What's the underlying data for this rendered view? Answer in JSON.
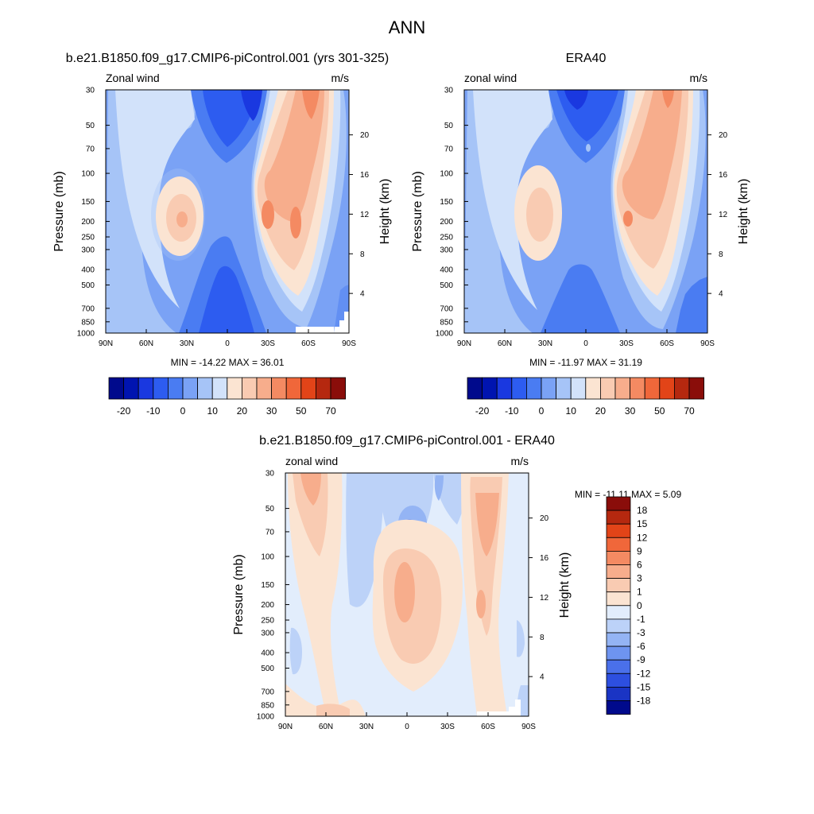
{
  "figure": {
    "suptitle": "ANN"
  },
  "chart_data": [
    {
      "type": "contour",
      "title": "b.e21.B1850.f09_g17.CMIP6-piControl.001 (yrs 301-325)",
      "left_label": "Zonal wind",
      "right_label": "m/s",
      "ylabel": "Pressure (mb)",
      "ylabel_right": "Height (km)",
      "x_ticks": [
        "90N",
        "60N",
        "30N",
        "0",
        "30S",
        "60S",
        "90S"
      ],
      "y_ticks": [
        "30",
        "50",
        "70",
        "100",
        "150",
        "200",
        "250",
        "300",
        "400",
        "500",
        "700",
        "850",
        "1000"
      ],
      "y_ticks_right": [
        "20",
        "16",
        "12",
        "8",
        "4"
      ],
      "min_max": "MIN = -14.22  MAX =  36.01",
      "levels": [
        -20,
        -10,
        0,
        10,
        20,
        30,
        50,
        70
      ],
      "colorbar_labels": [
        "-20",
        "-10",
        "0",
        "10",
        "20",
        "30",
        "50",
        "70"
      ],
      "colorbar_orientation": "horizontal",
      "min": -14.22,
      "max": 36.01
    },
    {
      "type": "contour",
      "title": "ERA40",
      "left_label": "zonal wind",
      "right_label": "m/s",
      "ylabel": "Pressure (mb)",
      "ylabel_right": "Height (km)",
      "x_ticks": [
        "90N",
        "60N",
        "30N",
        "0",
        "30S",
        "60S",
        "90S"
      ],
      "y_ticks": [
        "30",
        "50",
        "70",
        "100",
        "150",
        "200",
        "250",
        "300",
        "400",
        "500",
        "700",
        "850",
        "1000"
      ],
      "y_ticks_right": [
        "20",
        "16",
        "12",
        "8",
        "4"
      ],
      "min_max": "MIN = -11.97  MAX =  31.19",
      "levels": [
        -20,
        -10,
        0,
        10,
        20,
        30,
        50,
        70
      ],
      "colorbar_labels": [
        "-20",
        "-10",
        "0",
        "10",
        "20",
        "30",
        "50",
        "70"
      ],
      "colorbar_orientation": "horizontal",
      "min": -11.97,
      "max": 31.19
    },
    {
      "type": "contour",
      "title": "b.e21.B1850.f09_g17.CMIP6-piControl.001 - ERA40",
      "left_label": "zonal wind",
      "right_label": "m/s",
      "ylabel": "Pressure (mb)",
      "ylabel_right": "Height (km)",
      "x_ticks": [
        "90N",
        "60N",
        "30N",
        "0",
        "30S",
        "60S",
        "90S"
      ],
      "y_ticks": [
        "30",
        "50",
        "70",
        "100",
        "150",
        "200",
        "250",
        "300",
        "400",
        "500",
        "700",
        "850",
        "1000"
      ],
      "y_ticks_right": [
        "20",
        "16",
        "12",
        "8",
        "4"
      ],
      "min_max": "MIN = -11.11  MAX =   5.09",
      "levels": [
        18,
        15,
        12,
        9,
        6,
        3,
        1,
        0,
        -1,
        -3,
        -6,
        -9,
        -12,
        -15,
        -18
      ],
      "colorbar_labels": [
        "18",
        "15",
        "12",
        "9",
        "6",
        "3",
        "1",
        "0",
        "-1",
        "-3",
        "-6",
        "-9",
        "-12",
        "-15",
        "-18"
      ],
      "colorbar_orientation": "vertical",
      "min": -11.11,
      "max": 5.09
    }
  ],
  "colors": {
    "abs_colormap": [
      "#000a8c",
      "#0014b0",
      "#1a38e0",
      "#2d5cf0",
      "#4a7cf2",
      "#7aa2f5",
      "#a6c4f7",
      "#d2e2fa",
      "#fbe4d2",
      "#f9cbb2",
      "#f7ad8c",
      "#f48a62",
      "#f0673a",
      "#e24418",
      "#b5280f",
      "#8a0d0a"
    ],
    "diff_colormap_top_to_bottom": [
      "#8a0d0a",
      "#b5280f",
      "#e24418",
      "#f0673a",
      "#f48a62",
      "#f7ad8c",
      "#f9cbb2",
      "#fbe4d2",
      "#e2edfc",
      "#bcd2f8",
      "#94b4f4",
      "#6e94f0",
      "#4a70ea",
      "#2d4fe0",
      "#1a34c4",
      "#000a8c"
    ]
  }
}
